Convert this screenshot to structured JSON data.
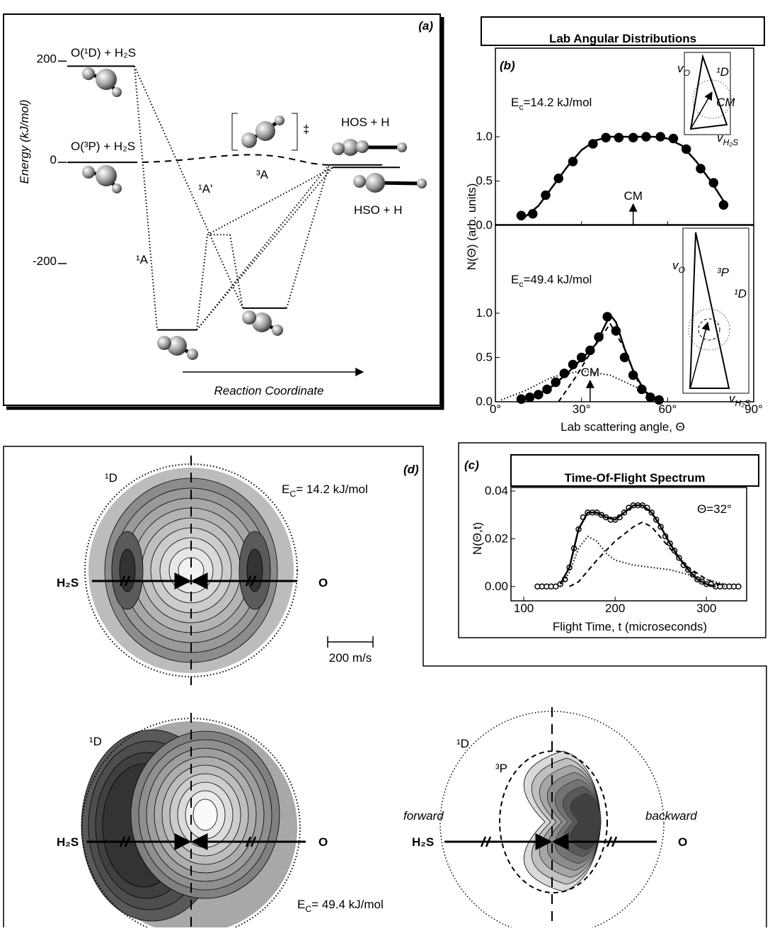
{
  "chart_data": [
    {
      "type": "energy-diagram",
      "panel": "(a)",
      "y_label": "Energy (kJ/mol)",
      "x_label": "Reaction Coordinate",
      "ylim": [
        -480,
        290
      ],
      "yticks": [
        200,
        0,
        -200
      ],
      "levels": [
        {
          "label": "O(¹D) + H₂S",
          "value": 190
        },
        {
          "label": "O(³P) + H₂S",
          "value": 0
        },
        {
          "label": "HOS + H",
          "value": -5
        },
        {
          "label": "HSO + H",
          "value": -10
        },
        {
          "value": -331
        },
        {
          "value": -143
        },
        {
          "value": -288
        }
      ],
      "transition_state": {
        "label": "‡",
        "value": 15
      },
      "state_labels": [
        "¹A",
        "¹A'",
        "³A"
      ]
    },
    {
      "type": "scatter",
      "panel": "(b)",
      "title": "Lab Angular Distributions",
      "y_label": "N(Θ) (arb. units)",
      "x_label": "Lab scattering angle, Θ",
      "xlim": [
        0,
        90
      ],
      "xticks": [
        {
          "value": 0,
          "label": "0°"
        },
        {
          "value": 30,
          "label": "30°"
        },
        {
          "value": 60,
          "label": "60°"
        },
        {
          "value": 90,
          "label": "90°"
        }
      ],
      "subplots": [
        {
          "annotation": {
            "main": "E",
            "sub": "c",
            "rest": "=14.2 kJ/mol"
          },
          "ylim": [
            0,
            2
          ],
          "yticks": [
            {
              "value": 0,
              "label": "0.0"
            },
            {
              "value": 0.5,
              "label": "0.5"
            },
            {
              "value": 1,
              "label": "1.0"
            }
          ],
          "markers": [
            {
              "label": "CM",
              "x": 48
            }
          ],
          "newton_labels": [
            {
              "main": "v",
              "sub": "O"
            },
            "¹D",
            "CM",
            {
              "main": "v",
              "sub": "H₂S"
            }
          ],
          "series": [
            {
              "style": "markers",
              "color": "#000000",
              "marker_fill": "#000000",
              "x": [
                9,
                13,
                17.5,
                22,
                27,
                34,
                38.5,
                43,
                48,
                52.5,
                57.5,
                62,
                66.5,
                71.5,
                76,
                79.5
              ],
              "values": [
                0.11,
                0.13,
                0.34,
                0.53,
                0.72,
                0.92,
                0.99,
                0.99,
                0.99,
                1.0,
                1.0,
                0.98,
                0.86,
                0.64,
                0.48,
                0.23
              ]
            },
            {
              "style": "solid",
              "color": "#000000",
              "x": [
                9,
                15,
                20,
                25,
                30,
                35,
                40,
                45,
                50,
                55,
                60,
                65,
                70,
                75,
                80
              ],
              "values": [
                0.06,
                0.22,
                0.44,
                0.66,
                0.85,
                0.96,
                1.0,
                1.0,
                1.0,
                1.0,
                0.98,
                0.9,
                0.72,
                0.5,
                0.25
              ]
            }
          ]
        },
        {
          "annotation": {
            "main": "E",
            "sub": "c",
            "rest": "=49.4 kJ/mol"
          },
          "ylim": [
            0,
            2
          ],
          "yticks": [
            {
              "value": 0,
              "label": "0.0"
            },
            {
              "value": 0.5,
              "label": "0.5"
            },
            {
              "value": 1,
              "label": "1.0"
            }
          ],
          "markers": [
            {
              "label": "CM",
              "x": 33
            }
          ],
          "newton_labels": [
            {
              "main": "v",
              "sub": "O"
            },
            "³P",
            "¹D",
            {
              "main": "v",
              "sub": "H₂S"
            }
          ],
          "series": [
            {
              "style": "markers",
              "color": "#000000",
              "marker_fill": "#000000",
              "x": [
                9,
                12,
                15,
                18,
                21,
                24,
                27,
                30,
                33,
                36,
                39,
                42,
                45,
                48,
                51,
                54,
                57
              ],
              "values": [
                0.03,
                0.05,
                0.08,
                0.14,
                0.22,
                0.32,
                0.42,
                0.5,
                0.58,
                0.73,
                0.96,
                0.8,
                0.5,
                0.3,
                0.14,
                0.05,
                0.02
              ]
            },
            {
              "style": "solid",
              "color": "#000000",
              "x": [
                9,
                15,
                20,
                25,
                30,
                35,
                38,
                40,
                42,
                45,
                48,
                52,
                56,
                58
              ],
              "values": [
                0.02,
                0.08,
                0.18,
                0.32,
                0.48,
                0.65,
                0.85,
                0.98,
                0.9,
                0.6,
                0.35,
                0.12,
                0.03,
                0
              ]
            },
            {
              "style": "dashed",
              "color": "#000000",
              "x": [
                22,
                28,
                34,
                40,
                45,
                50,
                55
              ],
              "values": [
                0,
                0.28,
                0.6,
                0.88,
                0.6,
                0.2,
                0
              ]
            },
            {
              "style": "dotted",
              "color": "#000000",
              "x": [
                2,
                10,
                20,
                30,
                40,
                50,
                57
              ],
              "values": [
                0.02,
                0.12,
                0.28,
                0.35,
                0.3,
                0.15,
                0.02
              ]
            }
          ]
        }
      ]
    },
    {
      "type": "scatter",
      "panel": "(c)",
      "title": "Time-Of-Flight Spectrum",
      "y_label": "N(Θ,t)",
      "x_label": "Flight Time, t (microseconds)",
      "xlim": [
        86,
        344
      ],
      "xticks": [
        100,
        200,
        300
      ],
      "subplots": [
        {
          "annotation": "Θ=32°",
          "ylim": [
            -0.006,
            0.0415
          ],
          "yticks": [
            {
              "value": 0,
              "label": "0.00"
            },
            {
              "value": 0.02,
              "label": "0.02"
            },
            {
              "value": 0.04,
              "label": "0.04"
            }
          ],
          "series": [
            {
              "style": "markers",
              "color": "#000000",
              "marker_fill": "#ffffff",
              "x": [
                115,
                120,
                125,
                130,
                135,
                140,
                145,
                150,
                155,
                160,
                165,
                170,
                175,
                180,
                185,
                190,
                195,
                200,
                205,
                210,
                215,
                220,
                225,
                230,
                235,
                240,
                245,
                250,
                255,
                260,
                265,
                270,
                275,
                280,
                285,
                290,
                295,
                300,
                305,
                310,
                315,
                320,
                325,
                330,
                335
              ],
              "values": [
                0,
                0,
                0,
                0,
                0,
                0.001,
                0.003,
                0.008,
                0.016,
                0.024,
                0.029,
                0.031,
                0.031,
                0.031,
                0.03,
                0.029,
                0.028,
                0.028,
                0.029,
                0.031,
                0.033,
                0.034,
                0.034,
                0.034,
                0.033,
                0.031,
                0.028,
                0.025,
                0.021,
                0.018,
                0.015,
                0.012,
                0.009,
                0.007,
                0.005,
                0.003,
                0.002,
                0.001,
                0.001,
                0,
                0,
                0,
                0,
                0,
                0
              ]
            },
            {
              "style": "solid",
              "color": "#000000",
              "x": [
                140,
                150,
                160,
                170,
                180,
                190,
                200,
                210,
                220,
                230,
                240,
                250,
                260,
                270,
                280,
                290,
                300,
                310
              ],
              "values": [
                0.001,
                0.008,
                0.024,
                0.031,
                0.031,
                0.029,
                0.028,
                0.031,
                0.034,
                0.034,
                0.031,
                0.025,
                0.018,
                0.012,
                0.007,
                0.003,
                0.001,
                0
              ]
            },
            {
              "style": "dashed",
              "color": "#000000",
              "x": [
                150,
                160,
                180,
                200,
                220,
                230,
                240,
                260,
                280,
                300,
                320
              ],
              "values": [
                0,
                0.002,
                0.011,
                0.019,
                0.025,
                0.027,
                0.025,
                0.016,
                0.008,
                0.003,
                0
              ]
            },
            {
              "style": "dotted",
              "color": "#000000",
              "x": [
                140,
                150,
                160,
                170,
                180,
                190,
                200,
                220,
                240,
                260,
                280,
                300,
                320
              ],
              "values": [
                0,
                0.006,
                0.016,
                0.021,
                0.019,
                0.014,
                0.011,
                0.009,
                0.008,
                0.007,
                0.005,
                0.003,
                0.001
              ]
            }
          ]
        }
      ]
    }
  ],
  "figure_d": {
    "panel": "(d)",
    "scale_bar": "200 m/s",
    "maps": [
      {
        "state": "¹D",
        "energy": {
          "main": "E",
          "sub": "C",
          "rest": "= 14.2 kJ/mol"
        },
        "reactant": "H₂S",
        "product": "O"
      },
      {
        "state": "¹D",
        "energy": {
          "main": "E",
          "sub": "C",
          "rest": "= 49.4 kJ/mol"
        },
        "reactant": "H₂S",
        "product": "O"
      },
      {
        "states": [
          "¹D",
          "³P"
        ],
        "directions": [
          "forward",
          "backward"
        ],
        "reactant": "H₂S",
        "product": "O"
      }
    ]
  }
}
